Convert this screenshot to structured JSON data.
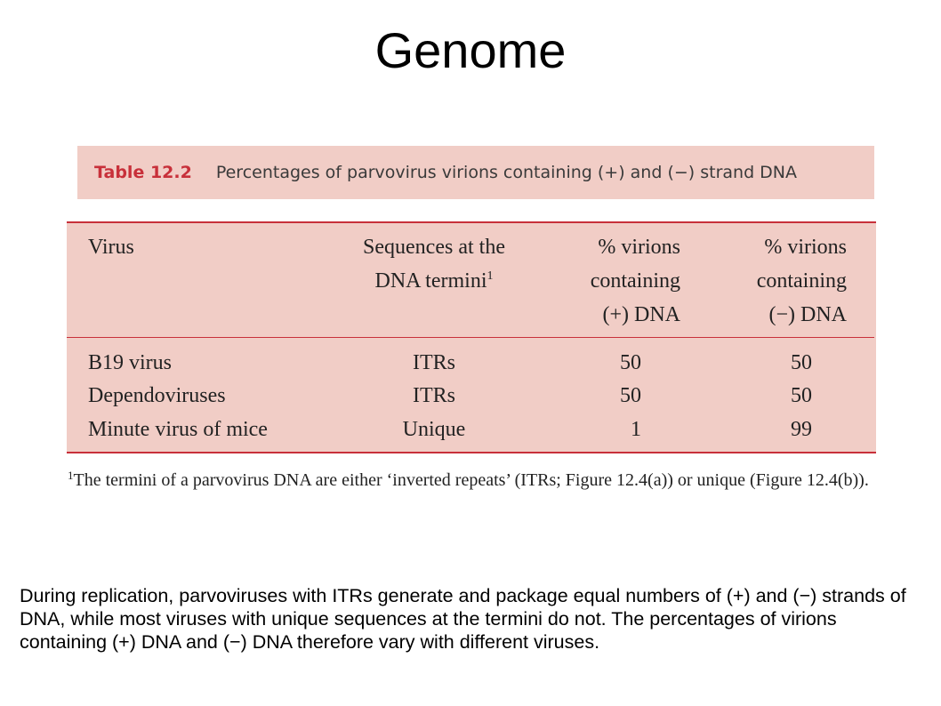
{
  "slide": {
    "title": "Genome",
    "caption": {
      "number": "Table 12.2",
      "text": "Percentages of parvovirus virions containing (+) and (−) strand DNA"
    },
    "table": {
      "headers": {
        "virus": "Virus",
        "sequences_line1": "Sequences at the",
        "sequences_line2": "DNA termini",
        "sequences_sup": "1",
        "plus_line1": "% virions",
        "plus_line2": "containing",
        "plus_line3": "(+) DNA",
        "minus_line1": "% virions",
        "minus_line2": "containing",
        "minus_line3": "(−) DNA"
      },
      "rows": [
        {
          "virus": "B19 virus",
          "sequences": "ITRs",
          "plus": "50",
          "minus": "50"
        },
        {
          "virus": "Dependoviruses",
          "sequences": "ITRs",
          "plus": "50",
          "minus": "50"
        },
        {
          "virus": "Minute virus of mice",
          "sequences": "Unique",
          "plus": "1",
          "minus": "99"
        }
      ]
    },
    "footnote": {
      "marker": "1",
      "text": "The termini of a parvovirus DNA are either ‘inverted repeats’ (ITRs; Figure 12.4(a)) or unique (Figure 12.4(b))."
    },
    "summary": "During replication, parvoviruses with ITRs generate and package equal numbers of (+) and (−) strands of DNA, while most viruses with unique sequences at the termini do not. The percentages of virions containing (+) DNA and (−) DNA therefore vary with different viruses."
  }
}
